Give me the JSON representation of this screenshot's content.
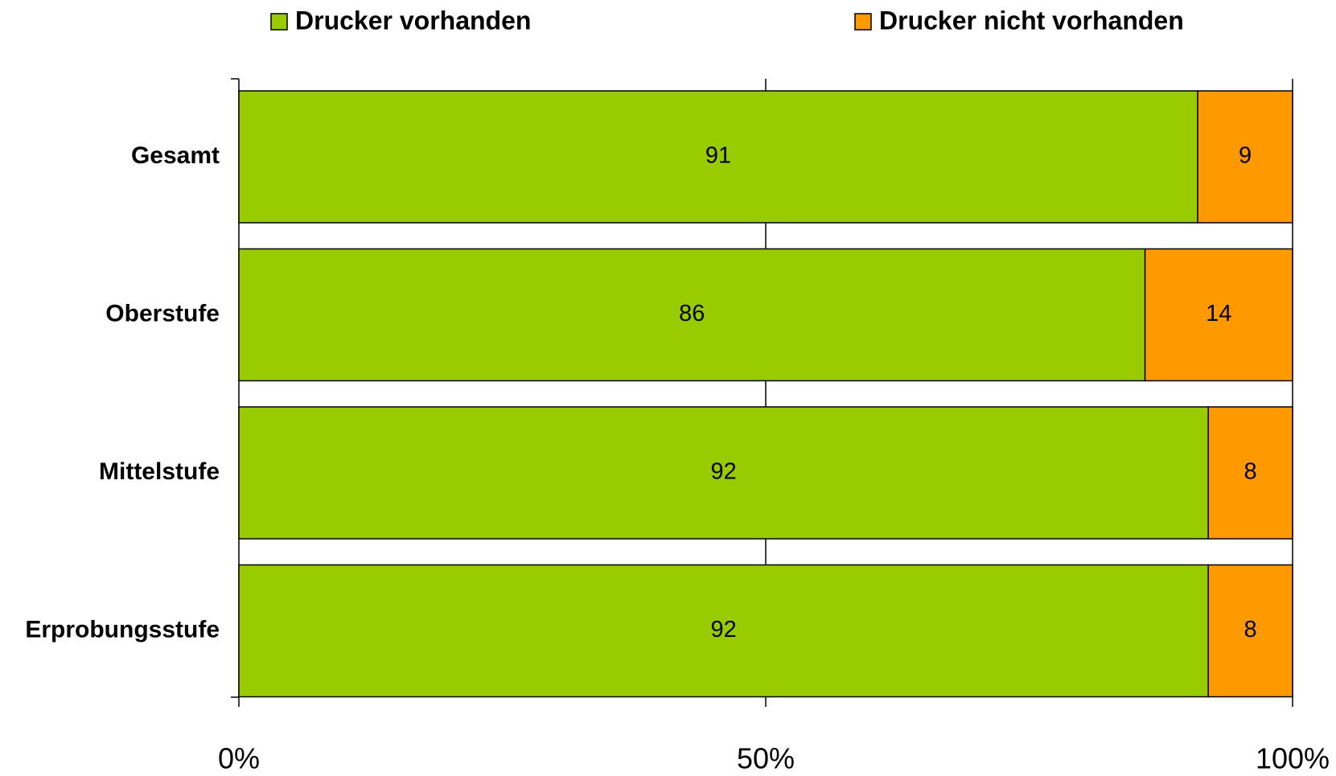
{
  "chart_data": {
    "type": "stacked-bar-horizontal",
    "categories": [
      "Gesamt",
      "Oberstufe",
      "Mittelstufe",
      "Erprobungsstufe"
    ],
    "series": [
      {
        "name": "Drucker vorhanden",
        "color": "#99cc00",
        "values": [
          91,
          86,
          92,
          92
        ]
      },
      {
        "name": "Drucker nicht vorhanden",
        "color": "#ff9900",
        "values": [
          9,
          14,
          8,
          8
        ]
      }
    ],
    "xlim": [
      0,
      100
    ],
    "xticks": [
      {
        "value": 0,
        "label": "0%"
      },
      {
        "value": 50,
        "label": "50%"
      },
      {
        "value": 100,
        "label": "100%"
      }
    ],
    "grid": true,
    "legend": "top"
  }
}
